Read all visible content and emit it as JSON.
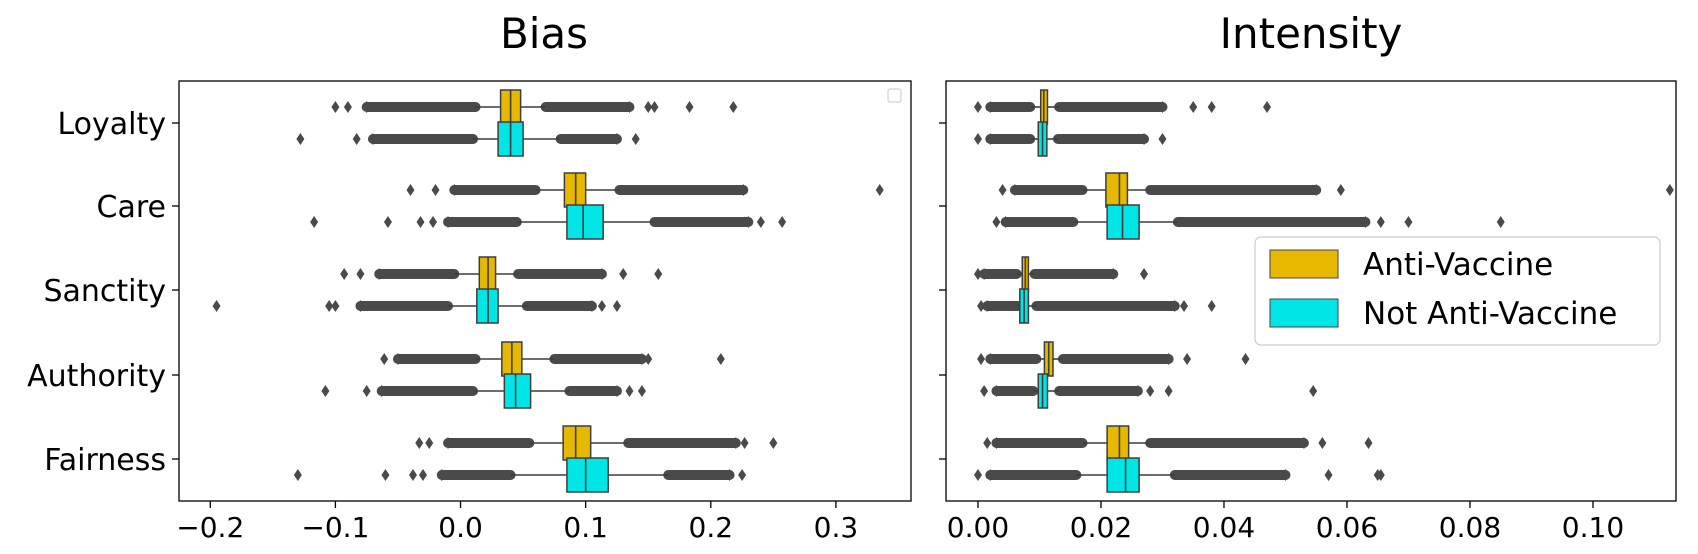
{
  "chart_data": [
    {
      "type": "boxplot",
      "title": "Bias",
      "categories": [
        "Loyalty",
        "Care",
        "Sanctity",
        "Authority",
        "Fairness"
      ],
      "xlim": [
        -0.225,
        0.36
      ],
      "xticks": [
        -0.2,
        -0.1,
        0.0,
        0.1,
        0.2,
        0.3
      ],
      "xtick_labels": [
        "−0.2",
        "−0.1",
        "0.0",
        "0.1",
        "0.2",
        "0.3"
      ],
      "legend": "top-right (empty)",
      "series": [
        {
          "name": "Anti-Vaccine",
          "color": "#e6b800",
          "boxes": [
            {
              "whislo": 0.012,
              "q1": 0.032,
              "med": 0.04,
              "q3": 0.048,
              "whishi": 0.068,
              "outliers_low": [
                -0.1,
                -0.09,
                -0.075
              ],
              "outliers_high": [
                0.135,
                0.15,
                0.155,
                0.183,
                0.218
              ]
            },
            {
              "whislo": 0.06,
              "q1": 0.083,
              "med": 0.092,
              "q3": 0.1,
              "whishi": 0.127,
              "outliers_low": [
                -0.04,
                -0.02,
                -0.005
              ],
              "outliers_high": [
                0.226,
                0.335
              ]
            },
            {
              "whislo": -0.005,
              "q1": 0.015,
              "med": 0.022,
              "q3": 0.028,
              "whishi": 0.046,
              "outliers_low": [
                -0.093,
                -0.08,
                -0.065
              ],
              "outliers_high": [
                0.113,
                0.13,
                0.158
              ]
            },
            {
              "whislo": 0.012,
              "q1": 0.033,
              "med": 0.041,
              "q3": 0.049,
              "whishi": 0.075,
              "outliers_low": [
                -0.061,
                -0.05
              ],
              "outliers_high": [
                0.145,
                0.15,
                0.208
              ]
            },
            {
              "whislo": 0.055,
              "q1": 0.082,
              "med": 0.092,
              "q3": 0.104,
              "whishi": 0.134,
              "outliers_low": [
                -0.033,
                -0.025,
                -0.01
              ],
              "outliers_high": [
                0.22,
                0.227,
                0.25
              ]
            }
          ]
        },
        {
          "name": "Not Anti-Vaccine",
          "color": "#00e5e5",
          "boxes": [
            {
              "whislo": 0.01,
              "q1": 0.03,
              "med": 0.04,
              "q3": 0.05,
              "whishi": 0.08,
              "outliers_low": [
                -0.128,
                -0.083,
                -0.07
              ],
              "outliers_high": [
                0.125,
                0.14
              ]
            },
            {
              "whislo": 0.045,
              "q1": 0.085,
              "med": 0.098,
              "q3": 0.114,
              "whishi": 0.155,
              "outliers_low": [
                -0.117,
                -0.058,
                -0.032,
                -0.022,
                -0.01
              ],
              "outliers_high": [
                0.23,
                0.24,
                0.257
              ]
            },
            {
              "whislo": -0.01,
              "q1": 0.013,
              "med": 0.022,
              "q3": 0.03,
              "whishi": 0.053,
              "outliers_low": [
                -0.195,
                -0.105,
                -0.1,
                -0.08
              ],
              "outliers_high": [
                0.105,
                0.113,
                0.125
              ]
            },
            {
              "whislo": 0.01,
              "q1": 0.035,
              "med": 0.044,
              "q3": 0.056,
              "whishi": 0.087,
              "outliers_low": [
                -0.108,
                -0.075,
                -0.063
              ],
              "outliers_high": [
                0.125,
                0.135,
                0.145
              ]
            },
            {
              "whislo": 0.04,
              "q1": 0.085,
              "med": 0.1,
              "q3": 0.118,
              "whishi": 0.166,
              "outliers_low": [
                -0.13,
                -0.06,
                -0.038,
                -0.03,
                -0.015
              ],
              "outliers_high": [
                0.215,
                0.225
              ]
            }
          ]
        }
      ]
    },
    {
      "type": "boxplot",
      "title": "Intensity",
      "categories": [
        "Loyalty",
        "Care",
        "Sanctity",
        "Authority",
        "Fairness"
      ],
      "xlim": [
        -0.0052,
        0.1135
      ],
      "xticks": [
        0.0,
        0.02,
        0.04,
        0.06,
        0.08,
        0.1
      ],
      "xtick_labels": [
        "0.00",
        "0.02",
        "0.04",
        "0.06",
        "0.08",
        "0.10"
      ],
      "legend": "center-right",
      "series": [
        {
          "name": "Anti-Vaccine",
          "color": "#e6b800",
          "boxes": [
            {
              "whislo": 0.0085,
              "q1": 0.0102,
              "med": 0.0107,
              "q3": 0.0113,
              "whishi": 0.0132,
              "outliers_low": [
                0.0,
                0.002
              ],
              "outliers_high": [
                0.03,
                0.035,
                0.038,
                0.047
              ]
            },
            {
              "whislo": 0.017,
              "q1": 0.0208,
              "med": 0.023,
              "q3": 0.0243,
              "whishi": 0.028,
              "outliers_low": [
                0.004,
                0.006
              ],
              "outliers_high": [
                0.055,
                0.059,
                0.1125
              ]
            },
            {
              "whislo": 0.0063,
              "q1": 0.0072,
              "med": 0.0077,
              "q3": 0.0082,
              "whishi": 0.0092,
              "outliers_low": [
                0.0,
                0.001
              ],
              "outliers_high": [
                0.022,
                0.027
              ]
            },
            {
              "whislo": 0.0095,
              "q1": 0.0108,
              "med": 0.0115,
              "q3": 0.0122,
              "whishi": 0.0138,
              "outliers_low": [
                0.0005,
                0.002
              ],
              "outliers_high": [
                0.031,
                0.034,
                0.0435
              ]
            },
            {
              "whislo": 0.017,
              "q1": 0.021,
              "med": 0.023,
              "q3": 0.0245,
              "whishi": 0.028,
              "outliers_low": [
                0.0015,
                0.003
              ],
              "outliers_high": [
                0.053,
                0.056,
                0.0635
              ]
            }
          ]
        },
        {
          "name": "Not Anti-Vaccine",
          "color": "#00e5e5",
          "boxes": [
            {
              "whislo": 0.0085,
              "q1": 0.0098,
              "med": 0.0105,
              "q3": 0.0112,
              "whishi": 0.013,
              "outliers_low": [
                0.0,
                0.002
              ],
              "outliers_high": [
                0.027,
                0.03
              ]
            },
            {
              "whislo": 0.0155,
              "q1": 0.021,
              "med": 0.0235,
              "q3": 0.0262,
              "whishi": 0.0325,
              "outliers_low": [
                0.003,
                0.0045
              ],
              "outliers_high": [
                0.063,
                0.0655,
                0.07,
                0.085
              ]
            },
            {
              "whislo": 0.0065,
              "q1": 0.0068,
              "med": 0.0075,
              "q3": 0.0082,
              "whishi": 0.0095,
              "outliers_low": [
                0.0005,
                0.0015
              ],
              "outliers_high": [
                0.032,
                0.0335,
                0.038
              ]
            },
            {
              "whislo": 0.009,
              "q1": 0.0098,
              "med": 0.0105,
              "q3": 0.0113,
              "whishi": 0.0132,
              "outliers_low": [
                0.001,
                0.003
              ],
              "outliers_high": [
                0.026,
                0.028,
                0.031,
                0.0545
              ]
            },
            {
              "whislo": 0.016,
              "q1": 0.021,
              "med": 0.024,
              "q3": 0.0262,
              "whishi": 0.032,
              "outliers_low": [
                0.0,
                0.002
              ],
              "outliers_high": [
                0.05,
                0.057,
                0.065,
                0.0655
              ]
            }
          ]
        }
      ]
    }
  ]
}
